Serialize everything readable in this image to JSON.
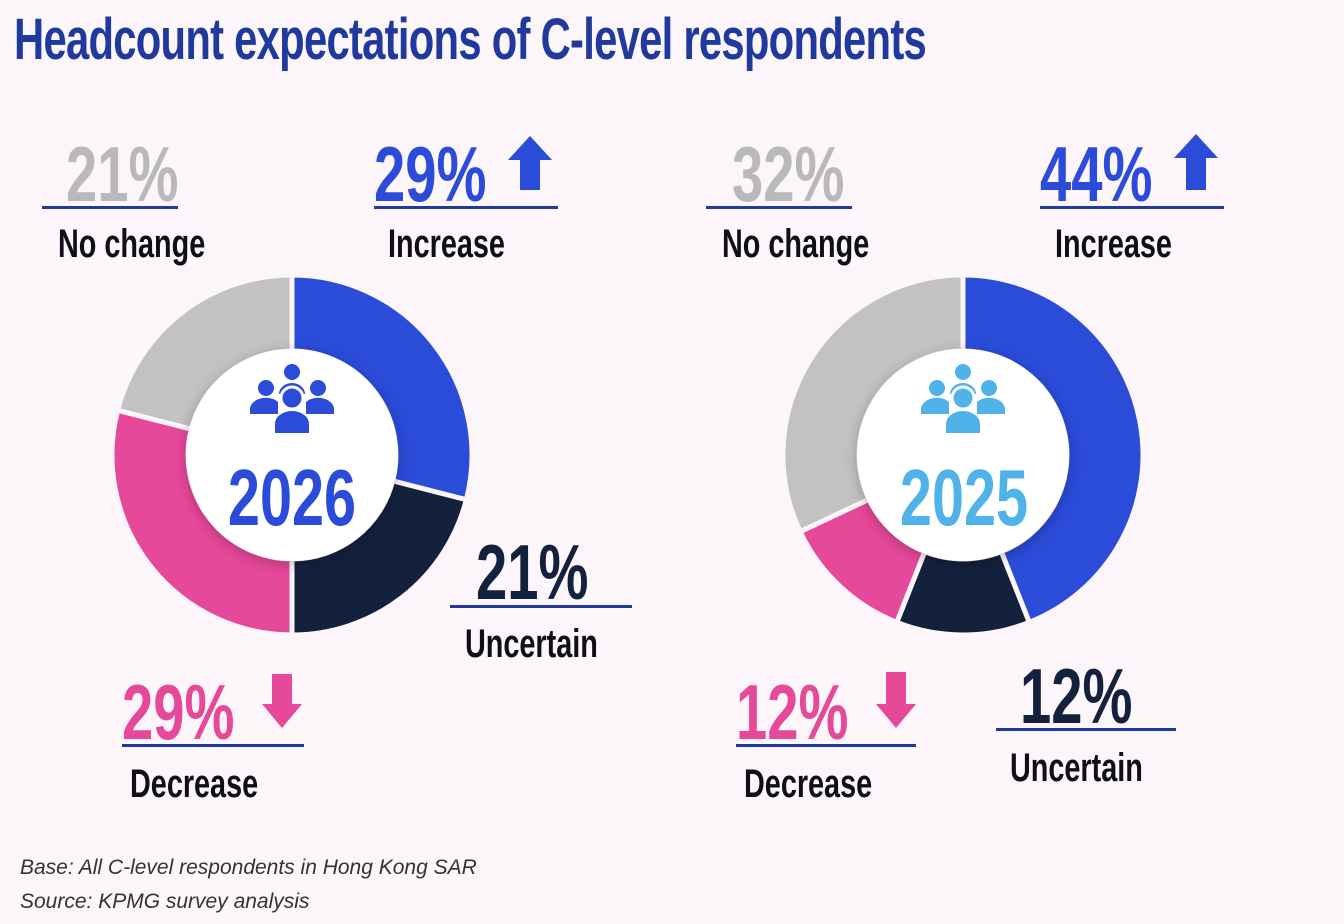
{
  "title": "Headcount expectations of  C-level respondents",
  "colors": {
    "increase": "#2b4bd9",
    "uncertain": "#14213d",
    "decrease": "#e6489a",
    "no_change": "#c2c2c2",
    "title": "#1f3a9c",
    "year_2026": "#2b4bd9",
    "year_2025": "#4fb3ea"
  },
  "chart_data": [
    {
      "type": "pie",
      "center_label": "2026",
      "icon": "people-group-icon",
      "categories": [
        "Increase",
        "Uncertain",
        "Decrease",
        "No change"
      ],
      "values": [
        29,
        21,
        29,
        21
      ],
      "labels": [
        "29%",
        "21%",
        "29%",
        "21%"
      ]
    },
    {
      "type": "pie",
      "center_label": "2025",
      "icon": "people-group-icon",
      "categories": [
        "Increase",
        "Uncertain",
        "Decrease",
        "No change"
      ],
      "values": [
        44,
        12,
        12,
        32
      ],
      "labels": [
        "44%",
        "12%",
        "12%",
        "32%"
      ]
    }
  ],
  "footer": {
    "base": "Base: All C-level respondents in Hong Kong SAR",
    "source": "Source: KPMG survey analysis"
  }
}
